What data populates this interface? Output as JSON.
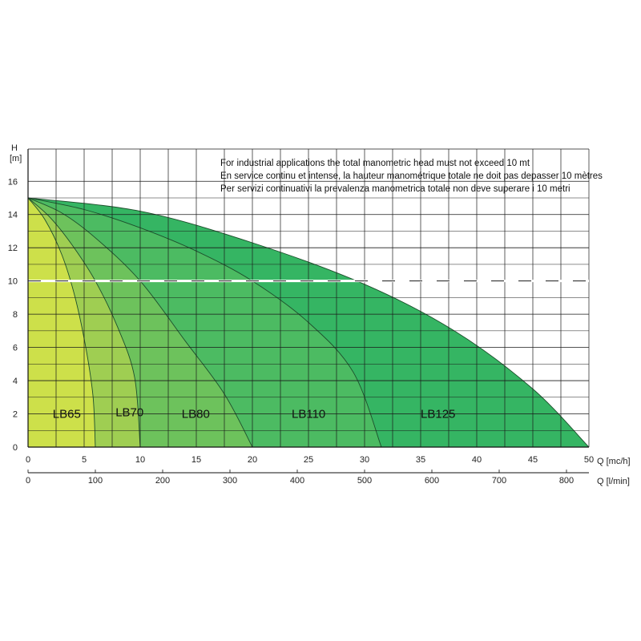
{
  "chart_data": {
    "type": "area",
    "ylabel_lines": [
      "H",
      "[m]"
    ],
    "xlabel": "Q [mc/h]",
    "x2label": "Q [l/min]",
    "xlim": [
      0,
      50
    ],
    "ylim": [
      0,
      15
    ],
    "x_ticks": [
      0,
      5,
      10,
      15,
      20,
      25,
      30,
      35,
      40,
      45,
      50
    ],
    "y_ticks": [
      0,
      2,
      4,
      6,
      8,
      10,
      12,
      14,
      16
    ],
    "x2_ticks": [
      {
        "label": "0",
        "q": 0
      },
      {
        "label": "100",
        "q": 6
      },
      {
        "label": "200",
        "q": 12
      },
      {
        "label": "300",
        "q": 18
      },
      {
        "label": "400",
        "q": 24
      },
      {
        "label": "500",
        "q": 30
      },
      {
        "label": "600",
        "q": 36
      },
      {
        "label": "700",
        "q": 42
      },
      {
        "label": "800",
        "q": 48
      }
    ],
    "grid": true,
    "limit_line_h": 10,
    "note": [
      "For industrial applications the total manometric head must not exceed 10 mt",
      "En service continu et intense, la hauteur manométrique totale ne doit pas depasser 10 mètres",
      "Per servizi continuativi la prevalenza manometrica totale non deve superare i 10 metri"
    ],
    "series": [
      {
        "name": "LB125",
        "color": "#35b563",
        "label_at": [
          35,
          2
        ],
        "points": [
          [
            0,
            15
          ],
          [
            10,
            14.2
          ],
          [
            20,
            12.3
          ],
          [
            30,
            9.8
          ],
          [
            38,
            7
          ],
          [
            45,
            3.5
          ],
          [
            50,
            0
          ]
        ]
      },
      {
        "name": "LB110",
        "color": "#4cbb62",
        "label_at": [
          23.5,
          2
        ],
        "points": [
          [
            0,
            15
          ],
          [
            5,
            14.3
          ],
          [
            10,
            13.2
          ],
          [
            15,
            11.8
          ],
          [
            20,
            10
          ],
          [
            25,
            7.5
          ],
          [
            29,
            4.5
          ],
          [
            31.5,
            0
          ]
        ]
      },
      {
        "name": "LB80",
        "color": "#6dc25c",
        "label_at": [
          13.7,
          2
        ],
        "points": [
          [
            0,
            15
          ],
          [
            3,
            14.1
          ],
          [
            6,
            12.6
          ],
          [
            10,
            10
          ],
          [
            14,
            6.4
          ],
          [
            17.5,
            3.2
          ],
          [
            20,
            0
          ]
        ]
      },
      {
        "name": "LB70",
        "color": "#9fce52",
        "label_at": [
          7.8,
          2.1
        ],
        "points": [
          [
            0,
            15
          ],
          [
            2,
            13.8
          ],
          [
            4,
            12.1
          ],
          [
            6,
            10
          ],
          [
            8,
            7.2
          ],
          [
            9.5,
            4.2
          ],
          [
            10,
            0
          ]
        ]
      },
      {
        "name": "LB65",
        "color": "#cde04a",
        "label_at": [
          2.2,
          2
        ],
        "points": [
          [
            0,
            15
          ],
          [
            1.5,
            13.7
          ],
          [
            3,
            11.6
          ],
          [
            4.2,
            9
          ],
          [
            5.2,
            5.8
          ],
          [
            5.8,
            3
          ],
          [
            6,
            0
          ]
        ]
      }
    ]
  }
}
